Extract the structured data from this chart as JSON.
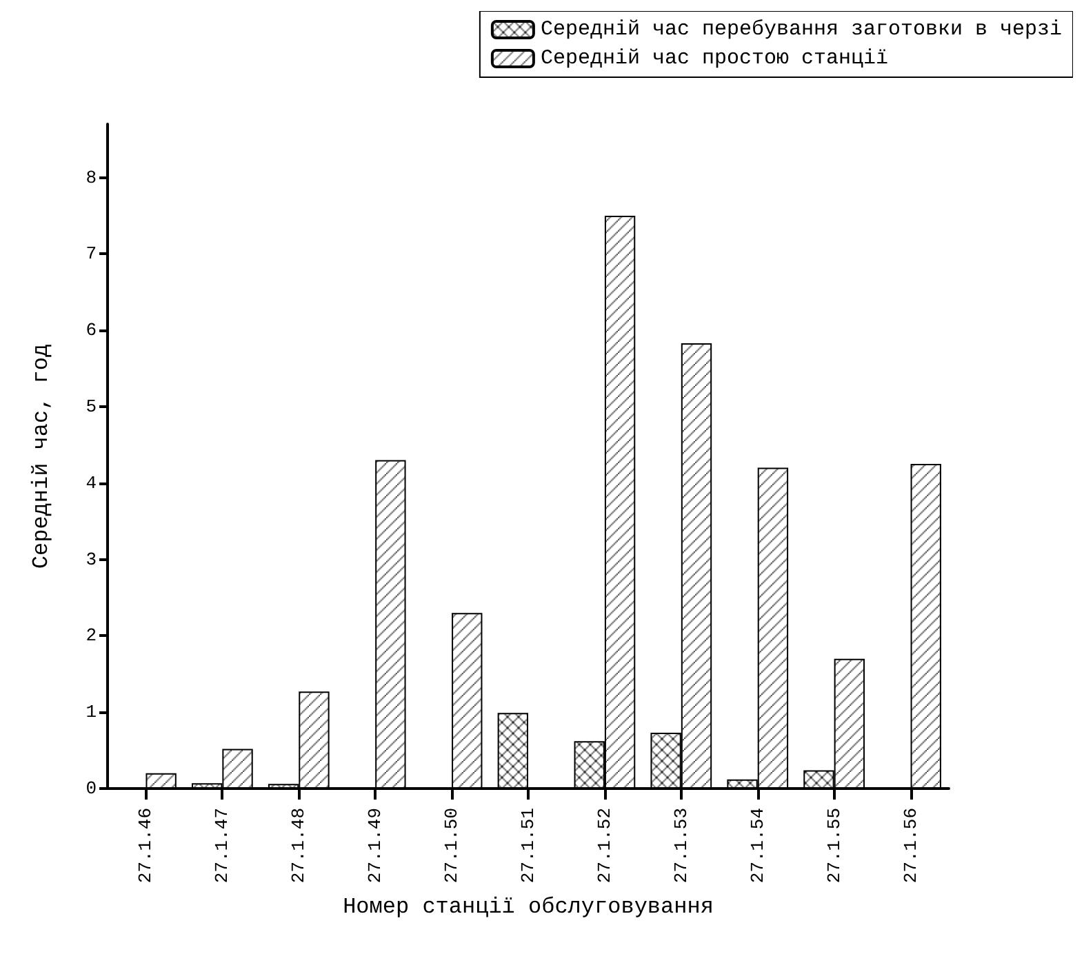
{
  "chart_data": {
    "type": "bar",
    "xlabel": "Номер станції обслуговування",
    "ylabel": "Середній час, год",
    "categories": [
      "27.1.46",
      "27.1.47",
      "27.1.48",
      "27.1.49",
      "27.1.50",
      "27.1.51",
      "27.1.52",
      "27.1.53",
      "27.1.54",
      "27.1.55",
      "27.1.56"
    ],
    "series": [
      {
        "name": "Середній час перебування заготовки в черзі",
        "color": "#000000",
        "values": [
          null,
          0.07,
          0.06,
          null,
          null,
          0.99,
          0.62,
          0.73,
          0.12,
          0.24,
          null
        ]
      },
      {
        "name": "Середній час простою станції",
        "color": "#000000",
        "values": [
          0.2,
          0.52,
          1.27,
          4.3,
          2.3,
          null,
          7.5,
          5.83,
          4.2,
          1.7,
          4.25
        ]
      }
    ],
    "ylim": [
      0,
      8.7
    ],
    "yticks": [
      0,
      1,
      2,
      3,
      4,
      5,
      6,
      7,
      8
    ],
    "grid": false,
    "legend": "top right"
  }
}
